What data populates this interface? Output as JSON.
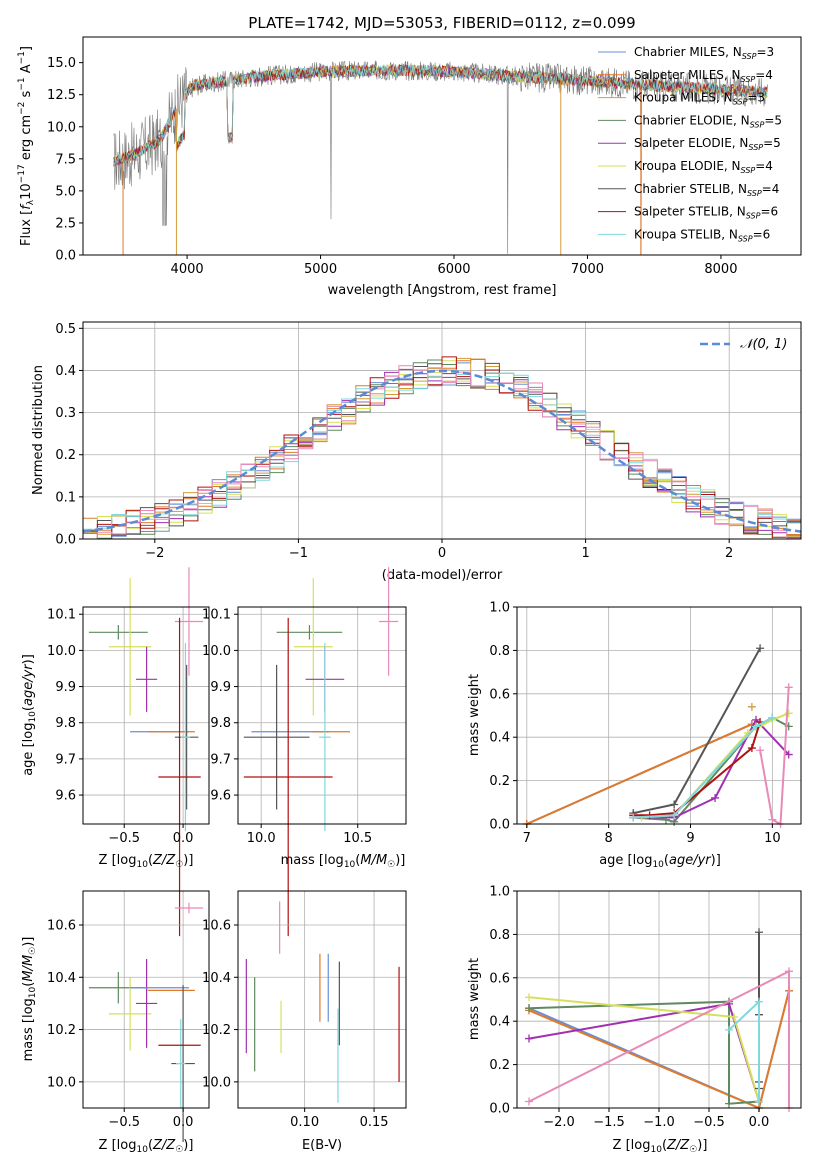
{
  "figure": {
    "title": "PLATE=1742, MJD=53053, FIBERID=0112, z=0.099"
  },
  "colors": {
    "chabrier_miles": "#6a8fd8",
    "salpeter_miles": "#e07a2a",
    "kroupa_miles": "#d49b3a",
    "chabrier_elodie": "#5f8a5f",
    "salpeter_elodie": "#a030b0",
    "kroupa_elodie": "#d6e05a",
    "chabrier_stelib": "#555555",
    "salpeter_stelib": "#b01010",
    "kroupa_stelib": "#7fd8dc",
    "pink": "#e88ab8",
    "grid": "#b0b0b0"
  },
  "chart_data": [
    {
      "id": "spectrum",
      "type": "line",
      "xlabel": "wavelength [Angstrom, rest frame]",
      "ylabel": "Flux [f_λ 10^-17 erg cm^-2 s^-1 A^-1]",
      "xlim": [
        3220,
        8600
      ],
      "ylim": [
        0,
        17
      ],
      "xticks": [
        4000,
        5000,
        6000,
        7000,
        8000
      ],
      "yticks": [
        0.0,
        2.5,
        5.0,
        7.5,
        10.0,
        12.5,
        15.0
      ],
      "legend_position": "right",
      "series": [
        {
          "name": "Chabrier MILES, N_SSP=3",
          "color_key": "chabrier_miles"
        },
        {
          "name": "Salpeter MILES, N_SSP=4",
          "color_key": "salpeter_miles"
        },
        {
          "name": "Kroupa MILES, N_SSP=3",
          "color_key": "kroupa_miles"
        },
        {
          "name": "Chabrier ELODIE, N_SSP=5",
          "color_key": "chabrier_elodie"
        },
        {
          "name": "Salpeter ELODIE, N_SSP=5",
          "color_key": "salpeter_elodie"
        },
        {
          "name": "Kroupa ELODIE, N_SSP=4",
          "color_key": "kroupa_elodie"
        },
        {
          "name": "Chabrier STELIB, N_SSP=4",
          "color_key": "chabrier_stelib"
        },
        {
          "name": "Salpeter STELIB, N_SSP=6",
          "color_key": "salpeter_stelib"
        },
        {
          "name": "Kroupa STELIB, N_SSP=6",
          "color_key": "kroupa_stelib"
        }
      ],
      "continuum": {
        "x": [
          3450,
          3600,
          3800,
          3950,
          4050,
          4300,
          4600,
          5000,
          5500,
          6000,
          6500,
          7000,
          7500,
          8000,
          8350
        ],
        "y": [
          7.3,
          7.8,
          9.0,
          12.0,
          13.2,
          13.6,
          14.0,
          14.3,
          14.4,
          14.3,
          13.9,
          13.6,
          13.2,
          12.9,
          12.7
        ]
      }
    },
    {
      "id": "residuals",
      "type": "histogram",
      "xlabel": "(data-model)/error",
      "ylabel": "Normed distribution",
      "xlim": [
        -2.5,
        2.5
      ],
      "ylim": [
        0,
        0.515
      ],
      "xticks": [
        -2,
        -1,
        0,
        1,
        2
      ],
      "yticks": [
        0.0,
        0.1,
        0.2,
        0.3,
        0.4,
        0.5
      ],
      "grid": true,
      "legend": {
        "label": "N(0,1)",
        "position": "top-right"
      },
      "bin_width": 0.1,
      "x_start": -2.5
    },
    {
      "id": "age_vs_Z",
      "type": "errorbar",
      "xlabel": "Z [log10(Z/Z☉)]",
      "ylabel": "age [log10(age/yr)]",
      "xlim": [
        -0.85,
        0.22
      ],
      "ylim": [
        9.52,
        10.12
      ],
      "xticks": [
        -0.5,
        0.0
      ],
      "xticklabels": [
        "−0.5",
        "0.0"
      ],
      "yticks": [
        9.6,
        9.7,
        9.8,
        9.9,
        10.0,
        10.1
      ],
      "points": [
        {
          "c": "chabrier_elodie",
          "x": -0.55,
          "xerr": 0.25,
          "y": 10.05,
          "yerr": 0.02
        },
        {
          "c": "kroupa_elodie",
          "x": -0.45,
          "xerr": 0.18,
          "y": 10.01,
          "yerr": 0.19
        },
        {
          "c": "salpeter_elodie",
          "x": -0.31,
          "xerr": 0.09,
          "y": 9.92,
          "yerr": 0.09
        },
        {
          "c": "pink",
          "x": 0.05,
          "xerr": 0.12,
          "y": 10.08,
          "yerr": 0.15
        },
        {
          "c": "chabrier_miles",
          "x": -0.2,
          "xerr": 0.25,
          "y": 9.775,
          "yerr": 0.0
        },
        {
          "c": "salpeter_miles",
          "x": -0.1,
          "xerr": 0.2,
          "y": 9.775,
          "yerr": 0.0
        },
        {
          "c": "chabrier_stelib",
          "x": 0.03,
          "xerr": 0.1,
          "y": 9.76,
          "yerr": 0.2
        },
        {
          "c": "kroupa_stelib",
          "x": 0.02,
          "xerr": 0.04,
          "y": 9.76,
          "yerr": 0.26
        },
        {
          "c": "salpeter_stelib",
          "x": -0.03,
          "xerr": 0.18,
          "y": 9.65,
          "yerr": 0.44
        }
      ]
    },
    {
      "id": "age_vs_mass",
      "type": "errorbar",
      "xlabel": "mass [log10(M/M☉)]",
      "ylabel": "",
      "xlim": [
        9.88,
        10.75
      ],
      "ylim": [
        9.52,
        10.12
      ],
      "xticks": [
        10.0,
        10.5
      ],
      "yticks": [
        9.6,
        9.7,
        9.8,
        9.9,
        10.0,
        10.1
      ],
      "points": [
        {
          "c": "chabrier_elodie",
          "x": 10.25,
          "xerr": 0.17,
          "y": 10.05,
          "yerr": 0.02
        },
        {
          "c": "kroupa_elodie",
          "x": 10.27,
          "xerr": 0.1,
          "y": 10.01,
          "yerr": 0.19
        },
        {
          "c": "salpeter_elodie",
          "x": 10.33,
          "xerr": 0.1,
          "y": 9.92,
          "yerr": 0.09
        },
        {
          "c": "pink",
          "x": 10.66,
          "xerr": 0.05,
          "y": 10.08,
          "yerr": 0.15
        },
        {
          "c": "chabrier_miles",
          "x": 10.15,
          "xerr": 0.2,
          "y": 9.775,
          "yerr": 0.0
        },
        {
          "c": "salpeter_miles",
          "x": 10.36,
          "xerr": 0.1,
          "y": 9.775,
          "yerr": 0.0
        },
        {
          "c": "chabrier_stelib",
          "x": 10.08,
          "xerr": 0.17,
          "y": 9.76,
          "yerr": 0.2
        },
        {
          "c": "kroupa_stelib",
          "x": 10.33,
          "xerr": 0.03,
          "y": 9.76,
          "yerr": 0.26
        },
        {
          "c": "salpeter_stelib",
          "x": 10.14,
          "xerr": 0.23,
          "y": 9.65,
          "yerr": 0.44
        }
      ]
    },
    {
      "id": "weight_vs_age",
      "type": "line",
      "xlabel": "age [log10(age/yr)]",
      "ylabel": "mass weight",
      "xlim": [
        6.88,
        10.35
      ],
      "ylim": [
        0,
        1
      ],
      "xticks": [
        7,
        8,
        9,
        10
      ],
      "yticks": [
        0.0,
        0.2,
        0.4,
        0.6,
        0.8,
        1.0
      ],
      "series": [
        {
          "c": "chabrier_miles",
          "x": [
            7.0,
            9.75
          ],
          "y": [
            0.0,
            0.46
          ]
        },
        {
          "c": "salpeter_miles",
          "x": [
            7.0,
            9.75
          ],
          "y": [
            0.0,
            0.46
          ]
        },
        {
          "c": "kroupa_miles",
          "x": [
            9.75
          ],
          "y": [
            0.54
          ]
        },
        {
          "c": "chabrier_elodie",
          "x": [
            8.3,
            8.7,
            8.8,
            9.8,
            10.0,
            10.2
          ],
          "y": [
            0.03,
            0.02,
            0.01,
            0.45,
            0.49,
            0.45
          ]
        },
        {
          "c": "salpeter_elodie",
          "x": [
            8.3,
            8.8,
            9.3,
            9.8,
            10.2
          ],
          "y": [
            0.03,
            0.03,
            0.12,
            0.48,
            0.32
          ]
        },
        {
          "c": "kroupa_elodie",
          "x": [
            8.4,
            8.8,
            9.7,
            10.0,
            10.2
          ],
          "y": [
            0.03,
            0.04,
            0.42,
            0.48,
            0.51
          ]
        },
        {
          "c": "chabrier_stelib",
          "x": [
            8.3,
            8.8,
            9.85
          ],
          "y": [
            0.05,
            0.09,
            0.81
          ]
        },
        {
          "c": "salpeter_stelib",
          "x": [
            8.3,
            8.5,
            8.8,
            9.75,
            9.85
          ],
          "y": [
            0.04,
            0.04,
            0.05,
            0.35,
            0.47
          ]
        },
        {
          "c": "kroupa_stelib",
          "x": [
            8.3,
            8.8,
            9.8,
            10.0
          ],
          "y": [
            0.03,
            0.04,
            0.45,
            0.49
          ]
        },
        {
          "c": "pink",
          "x": [
            9.85,
            10.0,
            10.1,
            10.2
          ],
          "y": [
            0.34,
            0.02,
            0.0,
            0.63
          ]
        }
      ]
    },
    {
      "id": "mass_vs_Z",
      "type": "errorbar",
      "xlabel": "Z [log10(Z/Z☉)]",
      "ylabel": "mass [log10(M/M☉)]",
      "xlim": [
        -0.85,
        0.22
      ],
      "ylim": [
        9.9,
        10.73
      ],
      "xticks": [
        -0.5,
        0.0
      ],
      "xticklabels": [
        "−0.5",
        "0.0"
      ],
      "yticks": [
        10.0,
        10.2,
        10.4,
        10.6
      ],
      "points": [
        {
          "c": "chabrier_elodie",
          "x": -0.55,
          "xerr": 0.25,
          "y": 10.36,
          "yerr": 0.06
        },
        {
          "c": "kroupa_elodie",
          "x": -0.45,
          "xerr": 0.18,
          "y": 10.26,
          "yerr": 0.14
        },
        {
          "c": "salpeter_elodie",
          "x": -0.31,
          "xerr": 0.09,
          "y": 10.3,
          "yerr": 0.17
        },
        {
          "c": "pink",
          "x": 0.05,
          "xerr": 0.12,
          "y": 10.665,
          "yerr": 0.02
        },
        {
          "c": "chabrier_miles",
          "x": -0.2,
          "xerr": 0.25,
          "y": 10.36,
          "yerr": 0.0
        },
        {
          "c": "salpeter_miles",
          "x": -0.1,
          "xerr": 0.2,
          "y": 10.35,
          "yerr": 0.0
        },
        {
          "c": "chabrier_stelib",
          "x": 0.0,
          "xerr": 0.1,
          "y": 10.07,
          "yerr": 0.3
        },
        {
          "c": "kroupa_stelib",
          "x": -0.02,
          "xerr": 0.04,
          "y": 10.07,
          "yerr": 0.17
        },
        {
          "c": "salpeter_stelib",
          "x": -0.03,
          "xerr": 0.18,
          "y": 10.14,
          "yerr": 0.0
        }
      ]
    },
    {
      "id": "mass_vs_ebv",
      "type": "errorbar",
      "xlabel": "E(B-V)",
      "ylabel": "",
      "xlim": [
        0.052,
        0.173
      ],
      "ylim": [
        9.9,
        10.73
      ],
      "xticks": [
        0.05,
        0.1,
        0.15
      ],
      "yticks": [
        10.0,
        10.2,
        10.4,
        10.6
      ],
      "points": [
        {
          "c": "salpeter_elodie",
          "x": 0.058,
          "xerr": 0.0,
          "y": 10.29,
          "yerr": 0.18
        },
        {
          "c": "chabrier_elodie",
          "x": 0.064,
          "xerr": 0.0,
          "y": 10.22,
          "yerr": 0.18
        },
        {
          "c": "kroupa_elodie",
          "x": 0.083,
          "xerr": 0.0,
          "y": 10.21,
          "yerr": 0.1
        },
        {
          "c": "pink",
          "x": 0.082,
          "xerr": 0.0,
          "y": 10.59,
          "yerr": 0.1
        },
        {
          "c": "salpeter_miles",
          "x": 0.111,
          "xerr": 0.0,
          "y": 10.36,
          "yerr": 0.13
        },
        {
          "c": "chabrier_miles",
          "x": 0.117,
          "xerr": 0.0,
          "y": 10.36,
          "yerr": 0.13
        },
        {
          "c": "chabrier_stelib",
          "x": 0.125,
          "xerr": 0.0,
          "y": 10.3,
          "yerr": 0.16
        },
        {
          "c": "kroupa_stelib",
          "x": 0.124,
          "xerr": 0.0,
          "y": 10.1,
          "yerr": 0.18
        },
        {
          "c": "salpeter_stelib",
          "x": 0.168,
          "xerr": 0.0,
          "y": 10.22,
          "yerr": 0.22
        }
      ]
    },
    {
      "id": "weight_vs_Z",
      "type": "line",
      "xlabel": "Z [log10(Z/Z☉)]",
      "ylabel": "mass weight",
      "xlim": [
        -2.42,
        0.42
      ],
      "ylim": [
        0,
        1
      ],
      "xticks": [
        -2.0,
        -1.5,
        -1.0,
        -0.5,
        0.0
      ],
      "xticklabels": [
        "−2.0",
        "−1.5",
        "−1.0",
        "−0.5",
        "0.0"
      ],
      "yticks": [
        0.0,
        0.2,
        0.4,
        0.6,
        0.8,
        1.0
      ],
      "series": [
        {
          "c": "chabrier_miles",
          "x": [
            -2.3,
            0.0,
            0.3
          ],
          "y": [
            0.46,
            0.0,
            0.54
          ]
        },
        {
          "c": "salpeter_miles",
          "x": [
            -2.3,
            0.0,
            0.3
          ],
          "y": [
            0.45,
            0.0,
            0.54
          ]
        },
        {
          "c": "chabrier_elodie",
          "x": [
            -2.3,
            -0.3,
            -0.3,
            0.0
          ],
          "y": [
            0.46,
            0.49,
            0.02,
            0.03
          ]
        },
        {
          "c": "salpeter_elodie",
          "x": [
            -2.3,
            -0.3,
            0.0
          ],
          "y": [
            0.32,
            0.48,
            0.03
          ]
        },
        {
          "c": "kroupa_elodie",
          "x": [
            -2.3,
            -0.25,
            0.0
          ],
          "y": [
            0.51,
            0.42,
            0.03
          ]
        },
        {
          "c": "chabrier_stelib",
          "x": [
            0.0,
            0.0,
            0.0,
            0.0
          ],
          "y": [
            0.81,
            0.43,
            0.12,
            0.09
          ]
        },
        {
          "c": "kroupa_stelib",
          "x": [
            -0.3,
            0.0,
            0.0
          ],
          "y": [
            0.36,
            0.49,
            0.03
          ]
        },
        {
          "c": "pink",
          "x": [
            -2.3,
            0.3,
            0.3
          ],
          "y": [
            0.03,
            0.63,
            0.0
          ]
        }
      ]
    }
  ]
}
